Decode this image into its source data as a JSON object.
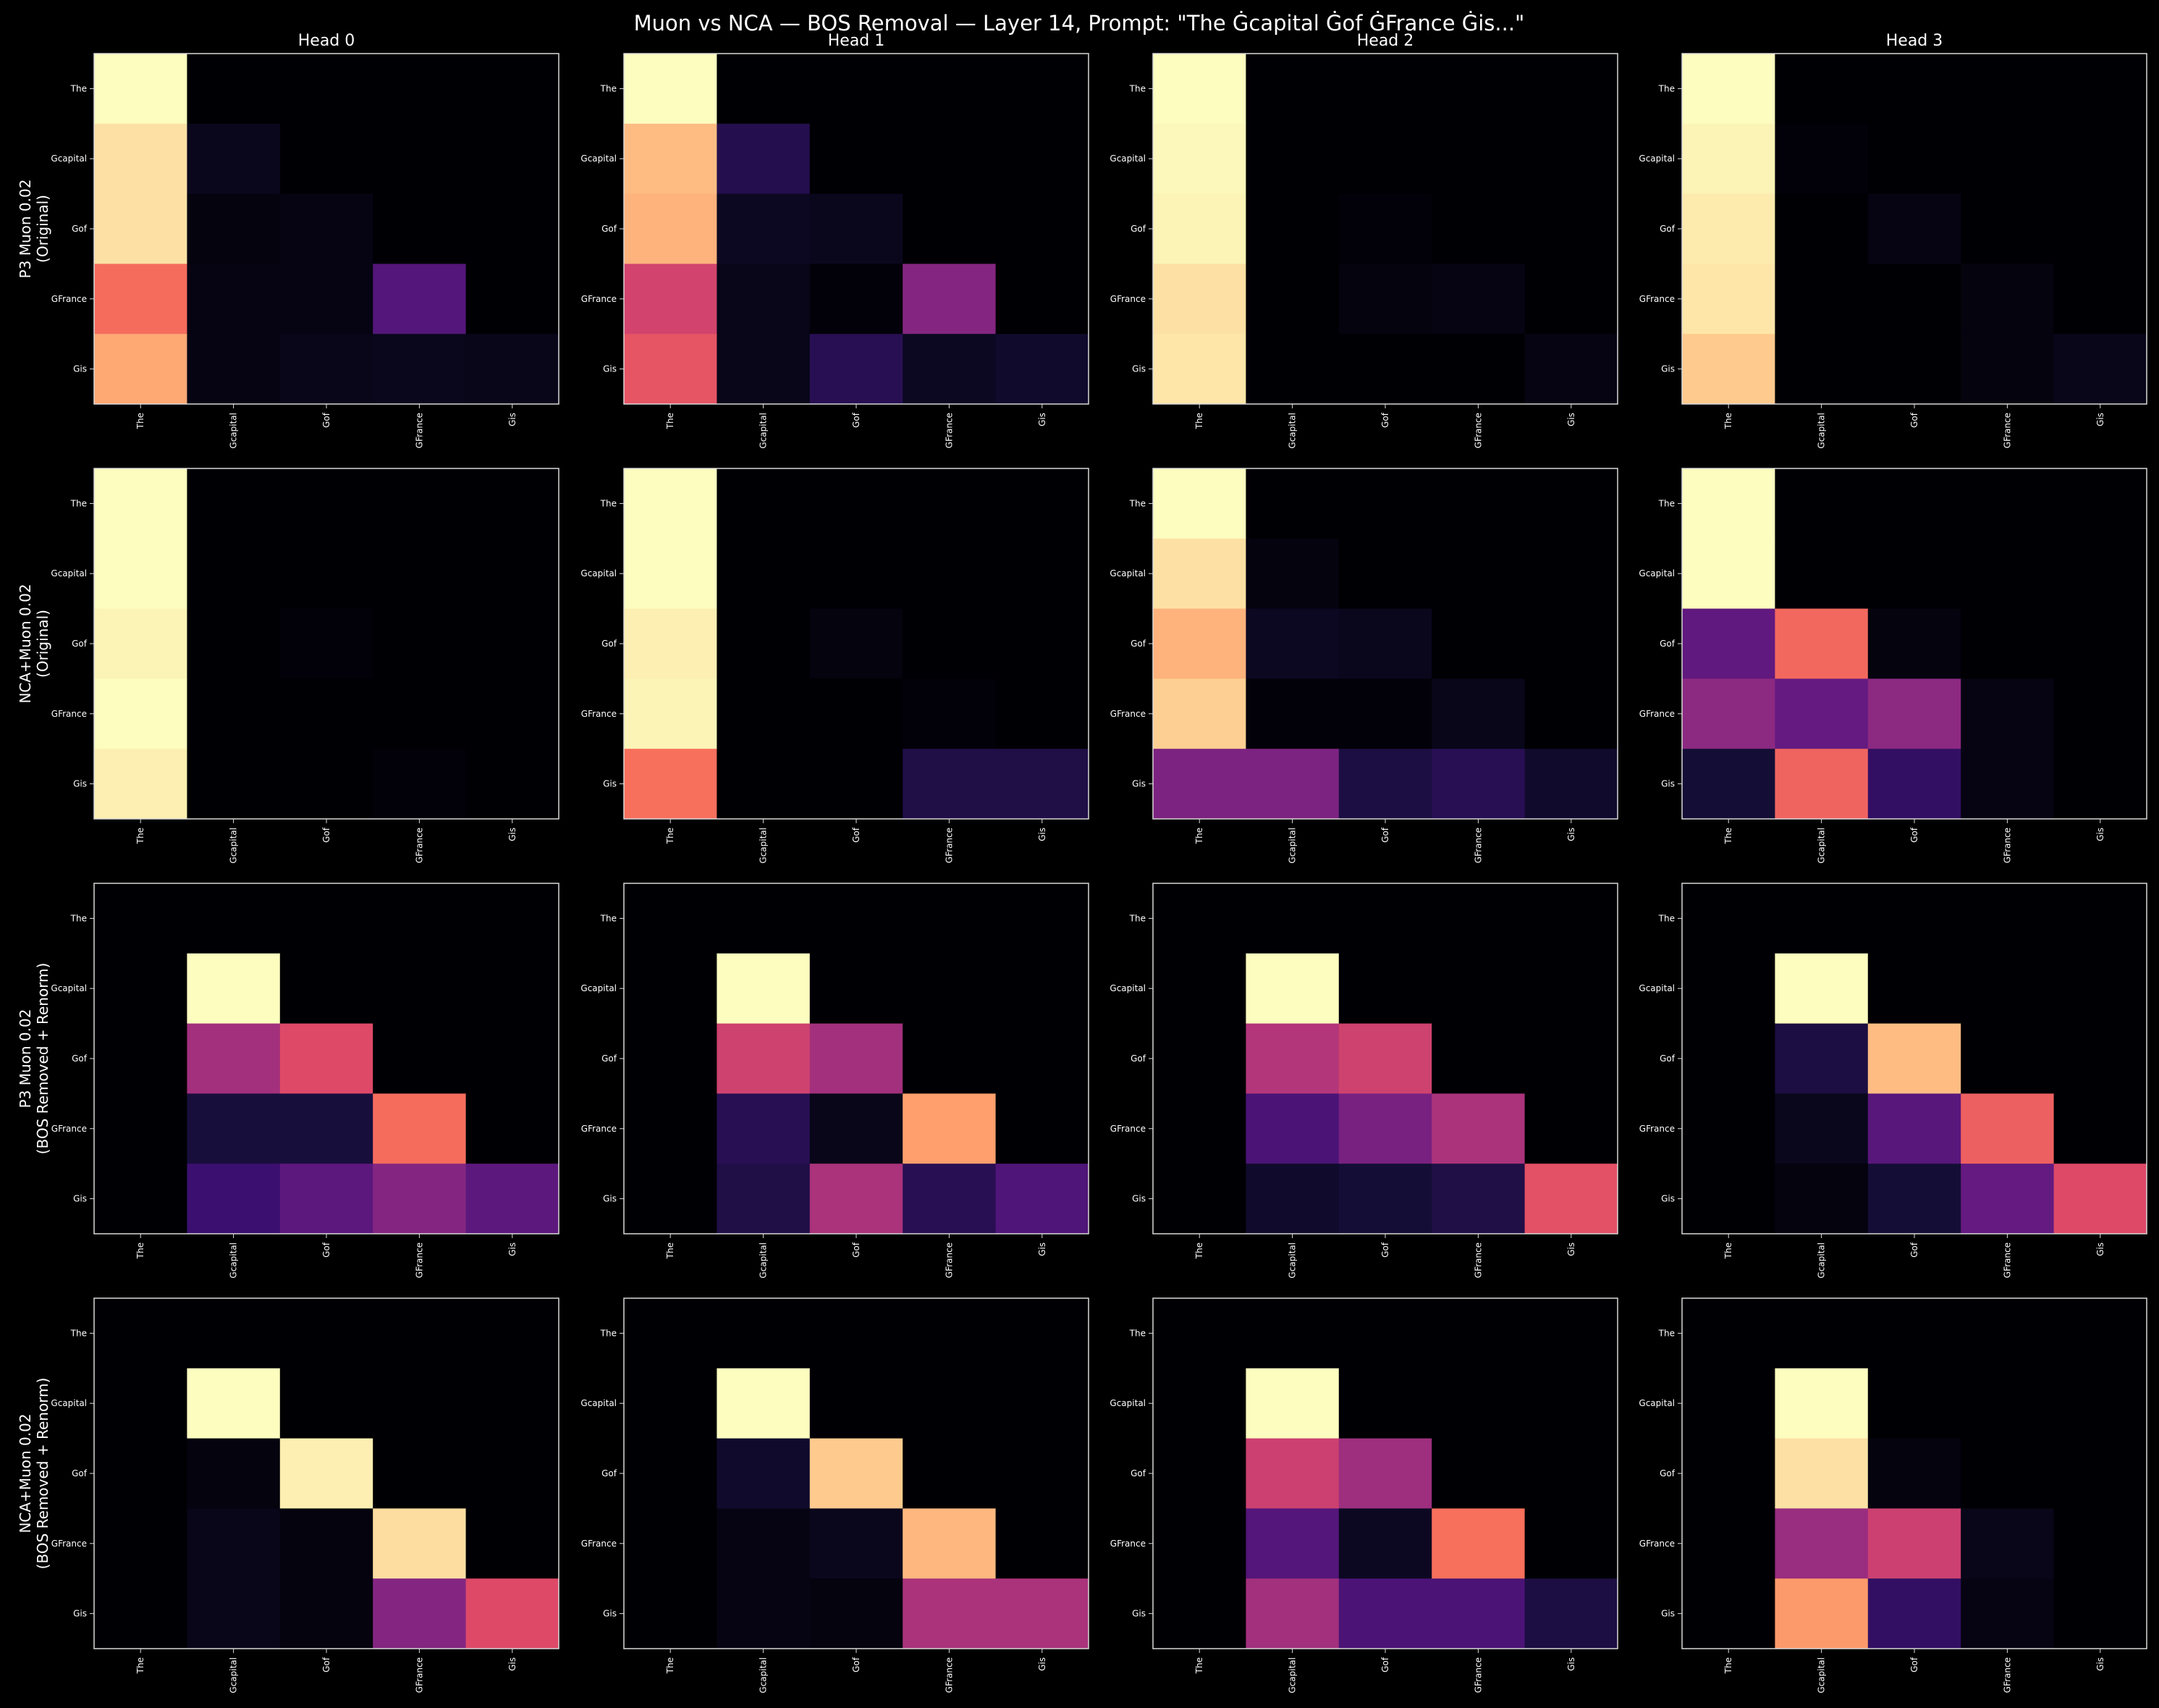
{
  "title": "Muon vs NCA — BOS Removal — Layer 14, Prompt: \"The Ġcapital Ġof ĠFrance Ġis...\"",
  "colormap": "magma",
  "background": "#000000",
  "row_labels": [
    [
      "P3 Muon 0.02",
      "(Original)"
    ],
    [
      "NCA+Muon 0.02",
      "(Original)"
    ],
    [
      "P3 Muon 0.02",
      "(BOS Removed + Renorm)"
    ],
    [
      "NCA+Muon 0.02",
      "(BOS Removed + Renorm)"
    ]
  ],
  "column_titles": [
    "Head 0",
    "Head 1",
    "Head 2",
    "Head 3"
  ],
  "chart_data": {
    "type": "heatmap",
    "tokens": [
      "The",
      "Gcapital",
      "Gof",
      "GFrance",
      "Gis"
    ],
    "value_range": [
      0,
      1
    ],
    "panels": [
      {
        "row": 0,
        "head": 0,
        "matrix": [
          [
            1,
            0,
            0,
            0,
            0
          ],
          [
            0.94,
            0.05,
            0,
            0,
            0
          ],
          [
            0.94,
            0.02,
            0.03,
            0,
            0
          ],
          [
            0.69,
            0.03,
            0.03,
            0.26,
            0
          ],
          [
            0.82,
            0.03,
            0.04,
            0.05,
            0.04
          ]
        ]
      },
      {
        "row": 0,
        "head": 1,
        "matrix": [
          [
            1,
            0,
            0,
            0,
            0
          ],
          [
            0.86,
            0.14,
            0,
            0,
            0
          ],
          [
            0.84,
            0.06,
            0.05,
            0,
            0
          ],
          [
            0.57,
            0.04,
            0.01,
            0.38,
            0
          ],
          [
            0.63,
            0.04,
            0.15,
            0.06,
            0.08
          ]
        ]
      },
      {
        "row": 0,
        "head": 2,
        "matrix": [
          [
            1,
            0,
            0,
            0,
            0
          ],
          [
            0.99,
            0,
            0,
            0,
            0
          ],
          [
            0.98,
            0,
            0.01,
            0,
            0
          ],
          [
            0.94,
            0,
            0.02,
            0.03,
            0
          ],
          [
            0.95,
            0,
            0,
            0,
            0.03
          ]
        ]
      },
      {
        "row": 0,
        "head": 3,
        "matrix": [
          [
            1,
            0,
            0,
            0,
            0
          ],
          [
            0.98,
            0.01,
            0,
            0,
            0
          ],
          [
            0.96,
            0,
            0.03,
            0,
            0
          ],
          [
            0.95,
            0,
            0,
            0.02,
            0
          ],
          [
            0.89,
            0,
            0,
            0.02,
            0.04
          ]
        ]
      },
      {
        "row": 1,
        "head": 0,
        "matrix": [
          [
            1,
            0,
            0,
            0,
            0
          ],
          [
            1,
            0,
            0,
            0,
            0
          ],
          [
            0.98,
            0,
            0.01,
            0,
            0
          ],
          [
            1,
            0,
            0,
            0,
            0
          ],
          [
            0.97,
            0,
            0,
            0.01,
            0
          ]
        ]
      },
      {
        "row": 1,
        "head": 1,
        "matrix": [
          [
            1,
            0,
            0,
            0,
            0
          ],
          [
            1,
            0,
            0,
            0,
            0
          ],
          [
            0.97,
            0,
            0.02,
            0,
            0
          ],
          [
            0.98,
            0,
            0,
            0.01,
            0
          ],
          [
            0.7,
            0,
            0,
            0.13,
            0.13
          ]
        ]
      },
      {
        "row": 1,
        "head": 2,
        "matrix": [
          [
            1,
            0,
            0,
            0,
            0
          ],
          [
            0.94,
            0.02,
            0,
            0,
            0
          ],
          [
            0.84,
            0.06,
            0.05,
            0,
            0
          ],
          [
            0.9,
            0.01,
            0.01,
            0.04,
            0
          ],
          [
            0.36,
            0.36,
            0.12,
            0.15,
            0.08
          ]
        ]
      },
      {
        "row": 1,
        "head": 3,
        "matrix": [
          [
            1,
            0,
            0,
            0,
            0
          ],
          [
            1,
            0,
            0,
            0,
            0
          ],
          [
            0.29,
            0.68,
            0.02,
            0,
            0
          ],
          [
            0.4,
            0.3,
            0.4,
            0.03,
            0
          ],
          [
            0.1,
            0.67,
            0.18,
            0.03,
            0
          ]
        ]
      },
      {
        "row": 2,
        "head": 0,
        "matrix": [
          [
            0,
            0,
            0,
            0,
            0
          ],
          [
            0,
            1,
            0,
            0,
            0
          ],
          [
            0,
            0.45,
            0.6,
            0,
            0
          ],
          [
            0,
            0.11,
            0.11,
            0.69,
            0
          ],
          [
            0,
            0.2,
            0.28,
            0.38,
            0.28
          ]
        ]
      },
      {
        "row": 2,
        "head": 1,
        "matrix": [
          [
            0,
            0,
            0,
            0,
            0
          ],
          [
            0,
            1,
            0,
            0,
            0
          ],
          [
            0,
            0.56,
            0.45,
            0,
            0
          ],
          [
            0,
            0.15,
            0.04,
            0.8,
            0
          ],
          [
            0,
            0.13,
            0.47,
            0.15,
            0.25
          ]
        ]
      },
      {
        "row": 2,
        "head": 2,
        "matrix": [
          [
            0,
            0,
            0,
            0,
            0
          ],
          [
            0,
            1,
            0,
            0,
            0
          ],
          [
            0,
            0.49,
            0.56,
            0,
            0
          ],
          [
            0,
            0.24,
            0.35,
            0.47,
            0
          ],
          [
            0,
            0.08,
            0.1,
            0.13,
            0.62
          ]
        ]
      },
      {
        "row": 2,
        "head": 3,
        "matrix": [
          [
            0,
            0,
            0,
            0,
            0
          ],
          [
            0,
            1,
            0,
            0,
            0
          ],
          [
            0,
            0.12,
            0.86,
            0,
            0
          ],
          [
            0,
            0.05,
            0.27,
            0.66,
            0
          ],
          [
            0,
            0.02,
            0.1,
            0.3,
            0.6
          ]
        ]
      },
      {
        "row": 3,
        "head": 0,
        "matrix": [
          [
            0,
            0,
            0,
            0,
            0
          ],
          [
            0,
            1,
            0,
            0,
            0
          ],
          [
            0,
            0.02,
            0.97,
            0,
            0
          ],
          [
            0,
            0.04,
            0.02,
            0.93,
            0
          ],
          [
            0,
            0.04,
            0.02,
            0.38,
            0.6
          ]
        ]
      },
      {
        "row": 3,
        "head": 1,
        "matrix": [
          [
            0,
            0,
            0,
            0,
            0
          ],
          [
            0,
            1,
            0,
            0,
            0
          ],
          [
            0,
            0.08,
            0.89,
            0,
            0
          ],
          [
            0,
            0.03,
            0.05,
            0.85,
            0
          ],
          [
            0,
            0.03,
            0.02,
            0.47,
            0.47
          ]
        ]
      },
      {
        "row": 3,
        "head": 2,
        "matrix": [
          [
            0,
            0,
            0,
            0,
            0
          ],
          [
            0,
            1,
            0,
            0,
            0
          ],
          [
            0,
            0.55,
            0.44,
            0,
            0
          ],
          [
            0,
            0.26,
            0.06,
            0.7,
            0
          ],
          [
            0,
            0.45,
            0.24,
            0.24,
            0.12
          ]
        ]
      },
      {
        "row": 3,
        "head": 3,
        "matrix": [
          [
            0,
            0,
            0,
            0,
            0
          ],
          [
            0,
            1,
            0,
            0,
            0
          ],
          [
            0,
            0.94,
            0.02,
            0,
            0
          ],
          [
            0,
            0.43,
            0.55,
            0.04,
            0
          ],
          [
            0,
            0.79,
            0.18,
            0.03,
            0
          ]
        ]
      }
    ]
  }
}
